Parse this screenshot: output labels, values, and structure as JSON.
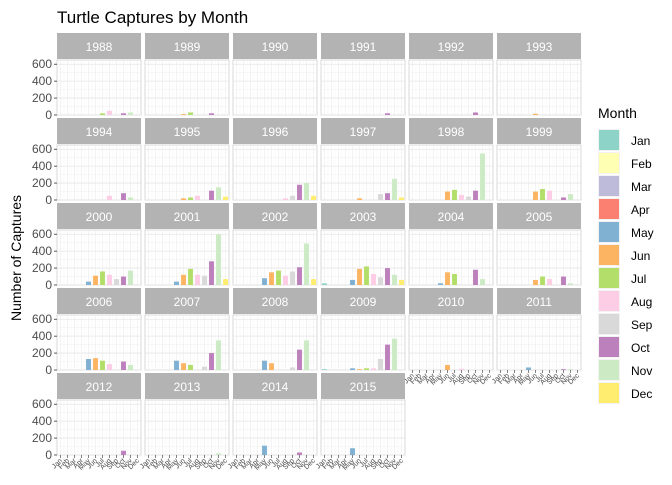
{
  "chart_data": {
    "type": "bar",
    "title": "Turtle Captures by Month",
    "ylabel": "Number of Captures",
    "xlabel": "",
    "ylim": [
      0,
      650
    ],
    "y_ticks": [
      0,
      200,
      400,
      600
    ],
    "grid": true,
    "facet_by": "year",
    "legend_title": "Month",
    "legend_position": "right",
    "months": [
      "Jan",
      "Feb",
      "Mar",
      "Apr",
      "May",
      "Jun",
      "Jul",
      "Aug",
      "Sep",
      "Oct",
      "Nov",
      "Dec"
    ],
    "colors": [
      "#8DD3C7",
      "#FFFFB3",
      "#BEBADA",
      "#FB8072",
      "#80B1D3",
      "#FDB462",
      "#B3DE69",
      "#FCCDE5",
      "#D9D9D9",
      "#BC80BD",
      "#CCEBC5",
      "#FFED6F"
    ],
    "panels": [
      {
        "year": "1988",
        "values": [
          0,
          0,
          0,
          0,
          0,
          0,
          20,
          50,
          0,
          20,
          30,
          0
        ]
      },
      {
        "year": "1989",
        "values": [
          0,
          0,
          0,
          0,
          0,
          10,
          30,
          0,
          0,
          20,
          0,
          0
        ]
      },
      {
        "year": "1990",
        "values": [
          0,
          0,
          0,
          0,
          0,
          0,
          0,
          0,
          0,
          0,
          0,
          0
        ]
      },
      {
        "year": "1991",
        "values": [
          0,
          0,
          0,
          0,
          0,
          0,
          0,
          0,
          0,
          20,
          0,
          0
        ]
      },
      {
        "year": "1992",
        "values": [
          0,
          0,
          0,
          0,
          0,
          0,
          0,
          0,
          0,
          30,
          0,
          0
        ]
      },
      {
        "year": "1993",
        "values": [
          0,
          0,
          0,
          0,
          0,
          15,
          0,
          0,
          0,
          0,
          0,
          0
        ]
      },
      {
        "year": "1994",
        "values": [
          0,
          0,
          0,
          0,
          0,
          0,
          0,
          50,
          0,
          80,
          30,
          0
        ]
      },
      {
        "year": "1995",
        "values": [
          0,
          0,
          0,
          0,
          0,
          20,
          30,
          50,
          0,
          110,
          150,
          40
        ]
      },
      {
        "year": "1996",
        "values": [
          0,
          0,
          0,
          0,
          0,
          0,
          0,
          20,
          50,
          180,
          200,
          50
        ]
      },
      {
        "year": "1997",
        "values": [
          0,
          0,
          0,
          0,
          0,
          20,
          0,
          0,
          70,
          80,
          250,
          30
        ]
      },
      {
        "year": "1998",
        "values": [
          0,
          0,
          0,
          0,
          0,
          100,
          120,
          60,
          40,
          110,
          550,
          0
        ]
      },
      {
        "year": "1999",
        "values": [
          0,
          0,
          0,
          0,
          0,
          100,
          130,
          110,
          0,
          30,
          70,
          0
        ]
      },
      {
        "year": "2000",
        "values": [
          0,
          0,
          0,
          0,
          40,
          110,
          160,
          120,
          70,
          100,
          170,
          0
        ]
      },
      {
        "year": "2001",
        "values": [
          0,
          0,
          0,
          0,
          40,
          120,
          190,
          120,
          110,
          280,
          600,
          70
        ]
      },
      {
        "year": "2002",
        "values": [
          0,
          0,
          0,
          0,
          80,
          150,
          170,
          110,
          160,
          210,
          490,
          70
        ]
      },
      {
        "year": "2003",
        "values": [
          20,
          0,
          0,
          0,
          60,
          190,
          220,
          130,
          90,
          200,
          120,
          60
        ]
      },
      {
        "year": "2004",
        "values": [
          0,
          0,
          0,
          0,
          20,
          150,
          130,
          0,
          0,
          180,
          70,
          0
        ]
      },
      {
        "year": "2005",
        "values": [
          0,
          0,
          0,
          0,
          0,
          60,
          100,
          70,
          0,
          100,
          20,
          0
        ]
      },
      {
        "year": "2006",
        "values": [
          0,
          0,
          0,
          0,
          130,
          140,
          110,
          70,
          0,
          100,
          60,
          0
        ]
      },
      {
        "year": "2007",
        "values": [
          0,
          0,
          0,
          0,
          110,
          80,
          60,
          0,
          40,
          200,
          350,
          0
        ]
      },
      {
        "year": "2008",
        "values": [
          0,
          0,
          0,
          0,
          110,
          80,
          0,
          0,
          30,
          240,
          350,
          0
        ]
      },
      {
        "year": "2009",
        "values": [
          10,
          0,
          0,
          0,
          20,
          10,
          20,
          20,
          130,
          300,
          370,
          0
        ]
      },
      {
        "year": "2010",
        "values": [
          0,
          0,
          0,
          0,
          0,
          60,
          0,
          15,
          0,
          0,
          0,
          0
        ]
      },
      {
        "year": "2011",
        "values": [
          0,
          0,
          0,
          0,
          30,
          0,
          0,
          0,
          0,
          10,
          10,
          0
        ]
      },
      {
        "year": "2012",
        "values": [
          0,
          0,
          0,
          0,
          0,
          0,
          0,
          0,
          0,
          50,
          0,
          0
        ]
      },
      {
        "year": "2013",
        "values": [
          0,
          0,
          0,
          0,
          0,
          0,
          0,
          0,
          0,
          0,
          20,
          0
        ]
      },
      {
        "year": "2014",
        "values": [
          0,
          0,
          0,
          0,
          110,
          0,
          0,
          0,
          0,
          30,
          0,
          0
        ]
      },
      {
        "year": "2015",
        "values": [
          0,
          0,
          0,
          0,
          80,
          0,
          0,
          0,
          0,
          0,
          0,
          0
        ]
      }
    ]
  }
}
